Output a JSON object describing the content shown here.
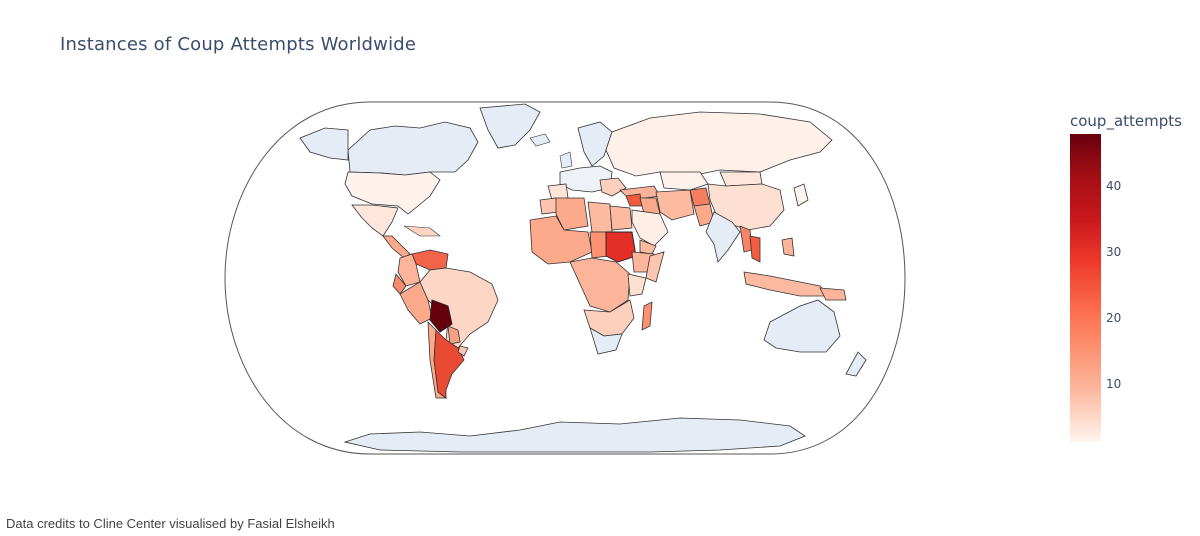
{
  "title": "Instances of Coup Attempts Worldwide",
  "colorbar": {
    "title": "coup_attempts",
    "ticks": [
      "10",
      "20",
      "30",
      "40"
    ],
    "colors": [
      "#fff5f0",
      "#fee0d2",
      "#fcbba1",
      "#fc9272",
      "#fb6a4a",
      "#ef3b2c",
      "#cb181d",
      "#a50f15",
      "#67000d"
    ]
  },
  "no_data_color": "#e5ecf6",
  "credits": "Data credits to Cline Center visualised by Fasial Elsheikh"
}
